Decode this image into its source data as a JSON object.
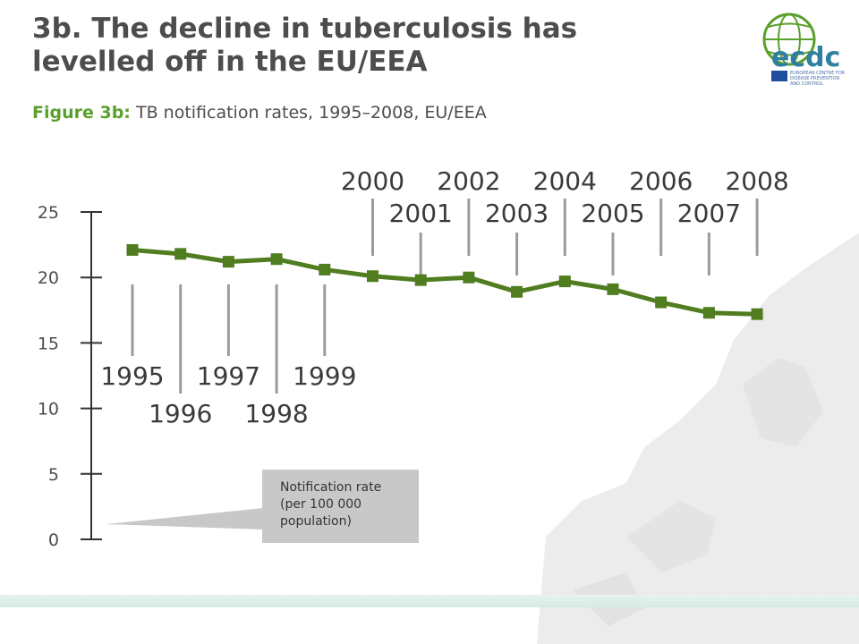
{
  "title_lines": [
    "3b. The decline in tuberculosis has",
    "levelled off in the EU/EEA"
  ],
  "subtitle": {
    "figure_label": "Figure 3b:",
    "text": "TB notification rates, 1995–2008, EU/EEA"
  },
  "logo": {
    "wordmark": "ecdc",
    "org_name_lines": [
      "EUROPEAN CENTRE FOR",
      "DISEASE PREVENTION",
      "AND CONTROL"
    ]
  },
  "colors": {
    "line": "#4f7d1f",
    "accent_green": "#5aa02c",
    "text": "#4d4d4d",
    "callout_bg": "#c8c8c8",
    "leader": "#9b9b9b"
  },
  "chart_data": {
    "type": "line",
    "x": [
      1995,
      1996,
      1997,
      1998,
      1999,
      2000,
      2001,
      2002,
      2003,
      2004,
      2005,
      2006,
      2007,
      2008
    ],
    "x_labels": [
      "1995",
      "1996",
      "1997",
      "1998",
      "1999",
      "2000",
      "2001",
      "2002",
      "2003",
      "2004",
      "2005",
      "2006",
      "2007",
      "2008"
    ],
    "series": [
      {
        "values": [
          22.1,
          21.8,
          21.2,
          21.4,
          20.6,
          20.1,
          19.8,
          20.0,
          18.9,
          19.7,
          19.1,
          18.1,
          17.3,
          17.2
        ]
      }
    ],
    "ylim": [
      0,
      25
    ],
    "yticks": [
      0,
      5,
      10,
      15,
      20,
      25
    ],
    "ytick_labels": [
      "0",
      "5",
      "10",
      "15",
      "20",
      "25"
    ],
    "grid": false,
    "annotation": "Notification rate (per 100 000 population)"
  }
}
